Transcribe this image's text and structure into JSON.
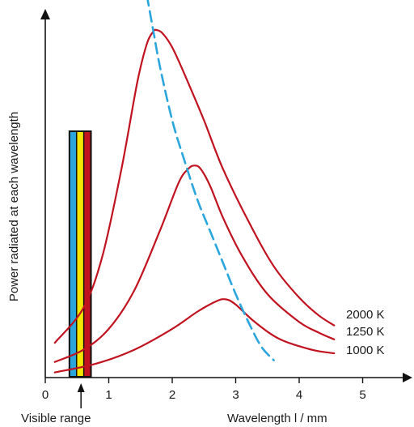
{
  "chart_data": {
    "type": "line",
    "title": "",
    "xlabel": "Wavelength l / mm",
    "ylabel": "Power radiated at each wavelength",
    "xlim": [
      0,
      5.5
    ],
    "ylim": [
      0,
      1
    ],
    "x_ticks": [
      "0",
      "1",
      "2",
      "3",
      "4",
      "5"
    ],
    "y_ticks": [],
    "grid": false,
    "series": [
      {
        "name": "2000 K",
        "color": "#c1121f",
        "x": [
          0.15,
          0.6,
          0.9,
          1.2,
          1.45,
          1.6,
          1.7,
          1.75,
          1.85,
          2.0,
          2.2,
          2.5,
          2.8,
          3.2,
          3.6,
          4.0,
          4.3,
          4.55
        ],
        "y": [
          0.1,
          0.2,
          0.35,
          0.6,
          0.85,
          0.96,
          0.995,
          1.0,
          0.99,
          0.95,
          0.87,
          0.74,
          0.6,
          0.45,
          0.32,
          0.23,
          0.18,
          0.15
        ]
      },
      {
        "name": "1250 K",
        "color": "#c1121f",
        "x": [
          0.15,
          0.6,
          1.0,
          1.4,
          1.8,
          2.1,
          2.25,
          2.35,
          2.45,
          2.6,
          2.8,
          3.1,
          3.5,
          4.0,
          4.3,
          4.55
        ],
        "y": [
          0.045,
          0.08,
          0.14,
          0.25,
          0.42,
          0.56,
          0.6,
          0.61,
          0.6,
          0.55,
          0.46,
          0.35,
          0.24,
          0.16,
          0.13,
          0.11
        ]
      },
      {
        "name": "1000 K",
        "color": "#c1121f",
        "x": [
          0.15,
          0.8,
          1.4,
          2.0,
          2.4,
          2.7,
          2.85,
          3.0,
          3.3,
          3.7,
          4.2,
          4.55
        ],
        "y": [
          0.015,
          0.04,
          0.08,
          0.14,
          0.19,
          0.22,
          0.225,
          0.21,
          0.16,
          0.11,
          0.08,
          0.07
        ]
      },
      {
        "name": "",
        "color": "#2aa6dd",
        "dashed": true,
        "x": [
          1.6,
          1.7,
          1.8,
          2.0,
          2.2,
          2.4,
          2.6,
          2.8,
          3.0,
          3.2,
          3.4,
          3.6
        ],
        "y": [
          1.1,
          1.0,
          0.9,
          0.74,
          0.62,
          0.51,
          0.42,
          0.33,
          0.24,
          0.16,
          0.09,
          0.05
        ]
      }
    ],
    "annotations": [
      {
        "text": "Visible range",
        "band": [
          0.38,
          0.72
        ],
        "colors": [
          "#2aa6dd",
          "#f5e600",
          "#c1121f"
        ]
      }
    ]
  }
}
